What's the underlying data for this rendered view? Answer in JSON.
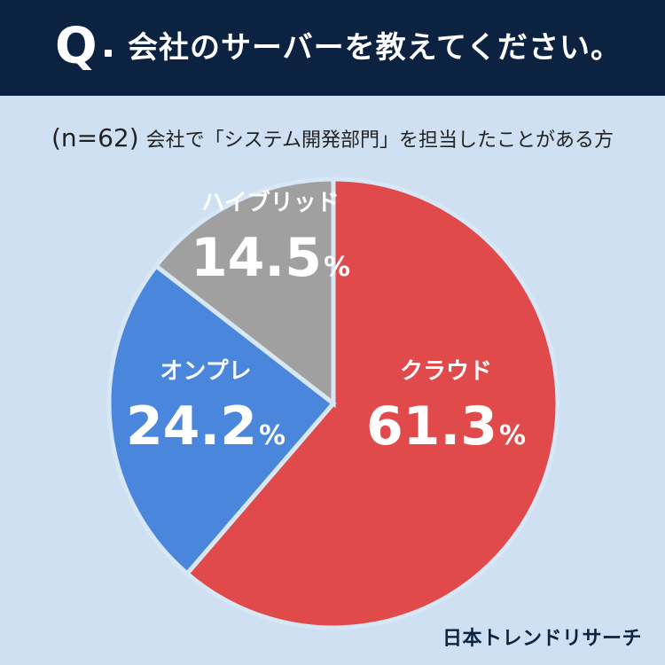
{
  "header": {
    "q_mark": "Q",
    "question": "会社のサーバーを教えてください。"
  },
  "subtitle": {
    "n": "(n=62)",
    "text": "会社で「システム開発部門」を担当したことがある方"
  },
  "brand": "日本トレンドリサーチ",
  "colors": {
    "header_bg": "#0b2240",
    "background": "#cfe0f3",
    "cloud": "#e04a4a",
    "onprem": "#4a86dc",
    "hybrid": "#a0a0a0"
  },
  "chart_data": {
    "type": "pie",
    "slices": [
      {
        "label": "クラウド",
        "value": 61.3,
        "display": "61.3",
        "unit": "%",
        "color": "#e04a4a"
      },
      {
        "label": "オンプレ",
        "value": 24.2,
        "display": "24.2",
        "unit": "%",
        "color": "#4a86dc"
      },
      {
        "label": "ハイブリッド",
        "value": 14.5,
        "display": "14.5",
        "unit": "%",
        "color": "#a0a0a0"
      }
    ],
    "start": "12 o'clock",
    "direction": "clockwise"
  }
}
